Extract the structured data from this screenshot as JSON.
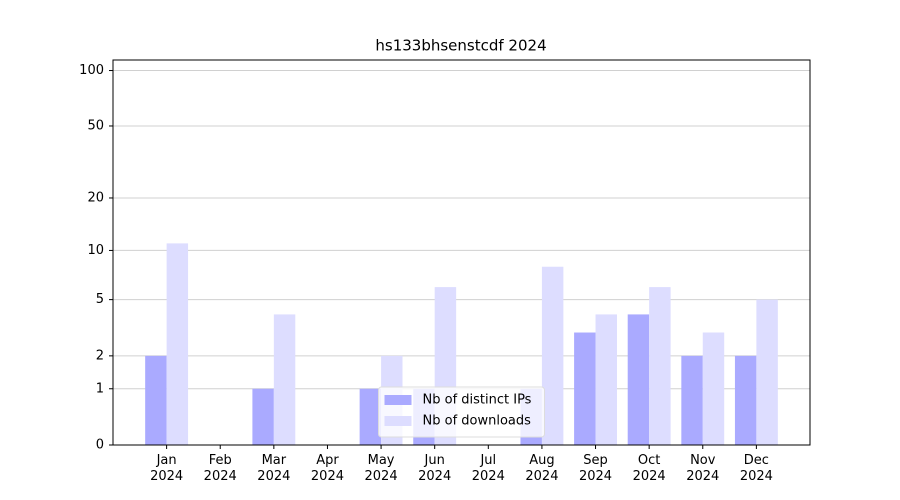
{
  "chart_data": {
    "type": "bar",
    "title": "hs133bhsenstcdf 2024",
    "categories": [
      "Jan 2024",
      "Feb 2024",
      "Mar 2024",
      "Apr 2024",
      "May 2024",
      "Jun 2024",
      "Jul 2024",
      "Aug 2024",
      "Sep 2024",
      "Oct 2024",
      "Nov 2024",
      "Dec 2024"
    ],
    "series": [
      {
        "name": "Nb of distinct IPs",
        "color": "#aaaaff",
        "values": [
          2,
          0,
          1,
          0,
          1,
          1,
          0,
          1,
          3,
          4,
          2,
          2
        ]
      },
      {
        "name": "Nb of downloads",
        "color": "#ddddff",
        "values": [
          11,
          0,
          4,
          0,
          2,
          6,
          0,
          8,
          4,
          6,
          3,
          5
        ]
      }
    ],
    "yscale": "log1p",
    "ylim": [
      0,
      114
    ],
    "yticks": [
      0,
      1,
      2,
      5,
      10,
      20,
      50,
      100
    ],
    "grid": true,
    "legend": "lower center"
  }
}
